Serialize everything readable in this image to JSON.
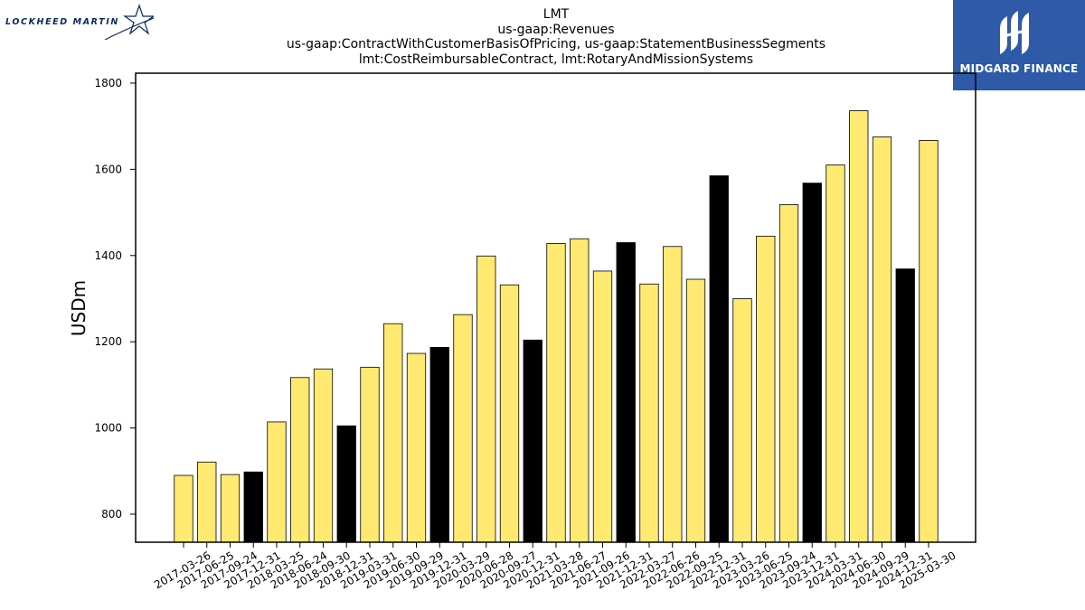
{
  "brand": {
    "left_logo_text": "LOCKHEED MARTIN",
    "right_logo_text": "MIDGARD FINANCE",
    "right_logo_bg": "#2e5aa8",
    "left_logo_color": "#0b2a5b"
  },
  "chart_data": {
    "type": "bar",
    "title_lines": [
      "LMT",
      "us-gaap:Revenues",
      "us-gaap:ContractWithCustomerBasisOfPricing, us-gaap:StatementBusinessSegments",
      "lmt:CostReimbursableContract, lmt:RotaryAndMissionSystems"
    ],
    "xlabel": "",
    "ylabel": "USDm",
    "ylim": [
      735,
      1823
    ],
    "yticks": [
      800,
      1000,
      1200,
      1400,
      1600,
      1800
    ],
    "grid": false,
    "colors": {
      "quarter": "#ffe970",
      "year_end": "#000000",
      "edge": "#000000"
    },
    "categories": [
      "2017-03-26",
      "2017-06-25",
      "2017-09-24",
      "2017-12-31",
      "2018-03-25",
      "2018-06-24",
      "2018-09-30",
      "2018-12-31",
      "2019-03-31",
      "2019-06-30",
      "2019-09-29",
      "2019-12-31",
      "2020-03-29",
      "2020-06-28",
      "2020-09-27",
      "2020-12-31",
      "2021-03-28",
      "2021-06-27",
      "2021-09-26",
      "2021-12-31",
      "2022-03-27",
      "2022-06-26",
      "2022-09-25",
      "2022-12-31",
      "2023-03-26",
      "2023-06-25",
      "2023-09-24",
      "2023-12-31",
      "2024-03-31",
      "2024-06-30",
      "2024-09-29",
      "2024-12-31",
      "2025-03-30"
    ],
    "values": [
      890,
      921,
      892,
      898,
      1014,
      1117,
      1137,
      1005,
      1141,
      1242,
      1173,
      1187,
      1263,
      1399,
      1332,
      1204,
      1428,
      1439,
      1364,
      1430,
      1334,
      1421,
      1345,
      1585,
      1300,
      1445,
      1518,
      1568,
      1610,
      1736,
      1675,
      1369,
      1667
    ],
    "year_end": [
      false,
      false,
      false,
      true,
      false,
      false,
      false,
      true,
      false,
      false,
      false,
      true,
      false,
      false,
      false,
      true,
      false,
      false,
      false,
      true,
      false,
      false,
      false,
      true,
      false,
      false,
      false,
      true,
      false,
      false,
      false,
      true,
      false
    ]
  }
}
